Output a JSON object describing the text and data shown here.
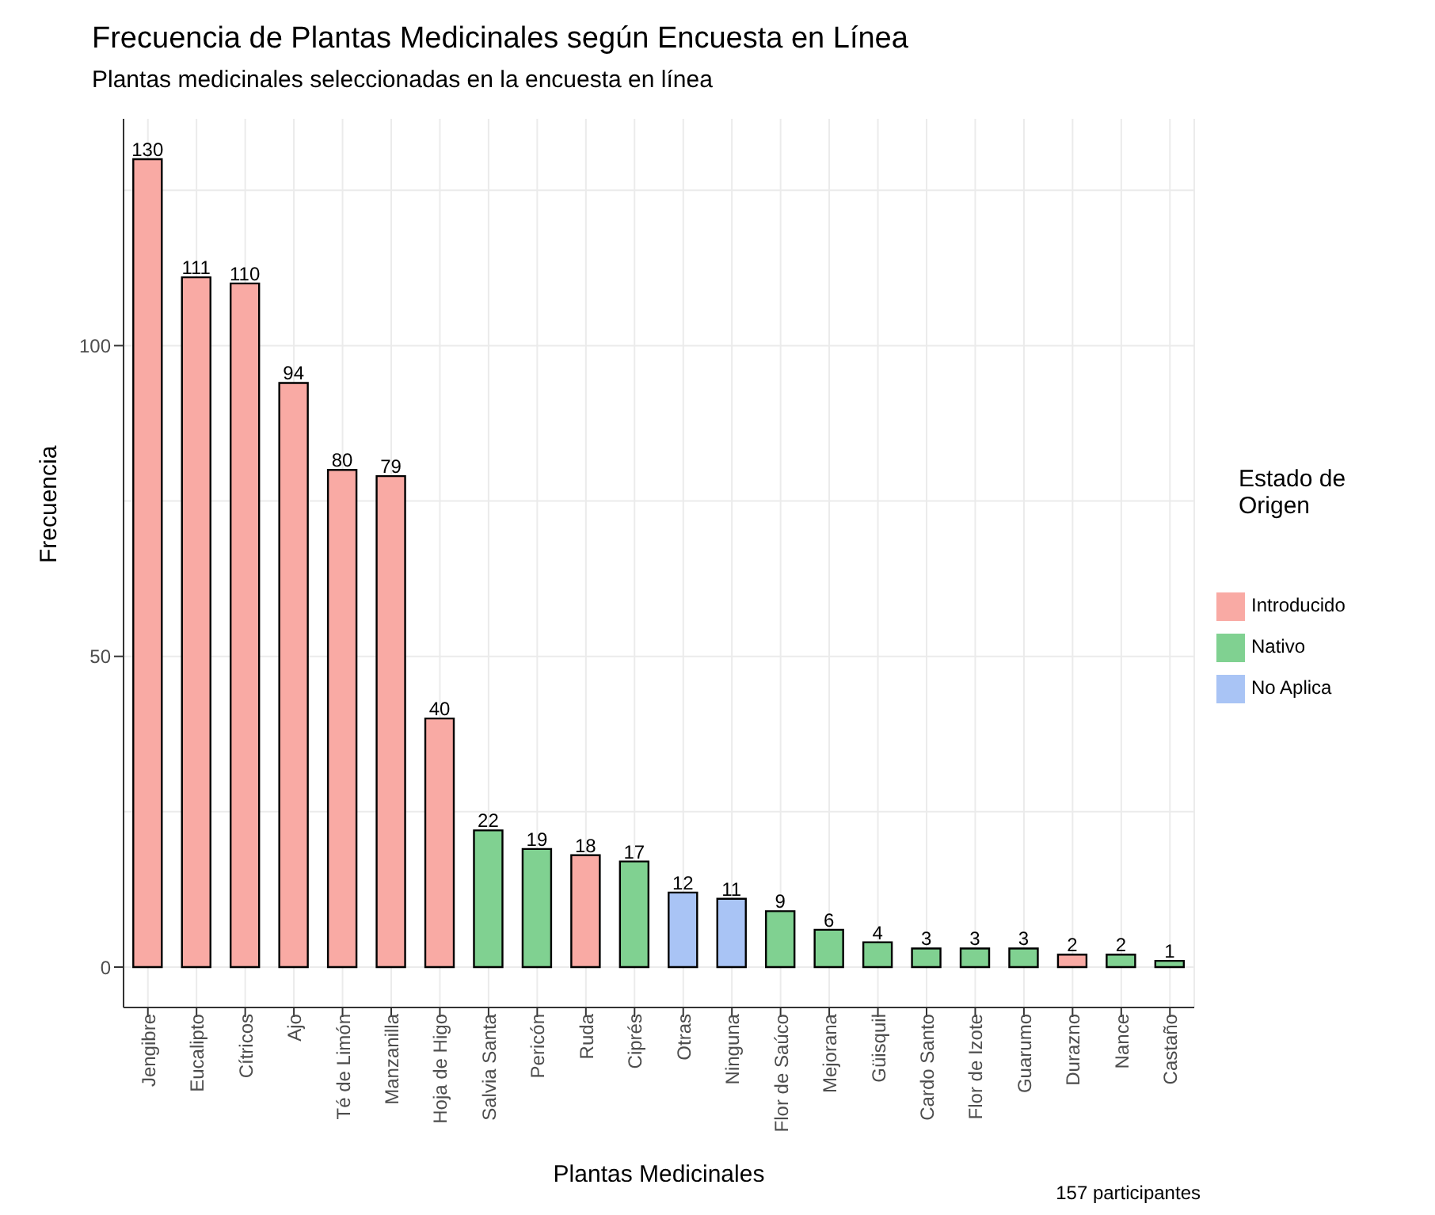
{
  "chart_data": {
    "type": "bar",
    "title": "Frecuencia de Plantas Medicinales según Encuesta en Línea",
    "subtitle": "Plantas medicinales seleccionadas en la encuesta en línea",
    "xlabel": "Plantas Medicinales",
    "ylabel": "Frecuencia",
    "legend_title": "Estado de Origen",
    "categories": [
      "Jengibre",
      "Eucalipto",
      "Cítricos",
      "Ajo",
      "Té de Limón",
      "Manzanilla",
      "Hoja de Higo",
      "Salvia Santa",
      "Pericón",
      "Ruda",
      "Ciprés",
      "Otras",
      "Ninguna",
      "Flor de Saúco",
      "Mejorana",
      "Güisquil",
      "Cardo Santo",
      "Flor de Izote",
      "Guarumo",
      "Durazno",
      "Nance",
      "Castaño"
    ],
    "series": [
      {
        "name": "Introducido",
        "color": "#f9aaa4",
        "values": [
          130,
          111,
          110,
          94,
          80,
          79,
          40,
          null,
          null,
          18,
          null,
          null,
          null,
          null,
          null,
          null,
          null,
          null,
          null,
          2,
          null,
          null
        ]
      },
      {
        "name": "Nativo",
        "color": "#80d191",
        "values": [
          null,
          null,
          null,
          null,
          null,
          null,
          null,
          22,
          19,
          null,
          17,
          null,
          null,
          9,
          6,
          4,
          3,
          3,
          3,
          null,
          2,
          1
        ]
      },
      {
        "name": "No Aplica",
        "color": "#a9c4f5",
        "values": [
          null,
          null,
          null,
          null,
          null,
          null,
          null,
          null,
          null,
          null,
          null,
          12,
          11,
          null,
          null,
          null,
          null,
          null,
          null,
          null,
          null,
          null
        ]
      }
    ],
    "ylim": [
      -6.5,
      136.5
    ],
    "yticks": [
      0,
      50,
      100
    ],
    "grid": true,
    "legend": "right",
    "data_labels": true,
    "annotations": [
      "157 participantes"
    ]
  }
}
